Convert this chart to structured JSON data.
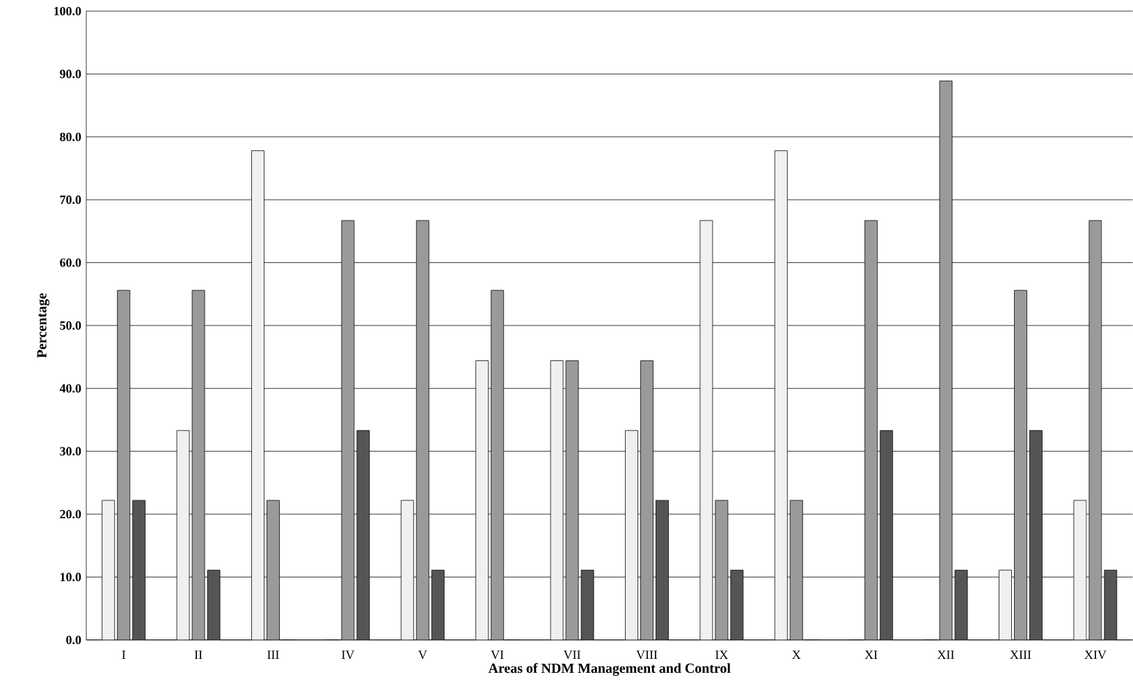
{
  "chart_data": {
    "type": "bar",
    "xlabel": "Areas of NDM Management and Control",
    "ylabel": "Percentage",
    "categories": [
      "I",
      "II",
      "III",
      "IV",
      "V",
      "VI",
      "VII",
      "VIII",
      "IX",
      "X",
      "XI",
      "XII",
      "XIII",
      "XIV"
    ],
    "series": [
      {
        "color": "#f0f0f0",
        "values": [
          22.2,
          33.3,
          77.8,
          0,
          22.2,
          44.4,
          44.4,
          33.3,
          66.7,
          77.8,
          0,
          0,
          11.1,
          22.2
        ]
      },
      {
        "color": "#9a9a9a",
        "values": [
          55.6,
          55.6,
          22.2,
          66.7,
          66.7,
          55.6,
          44.4,
          44.4,
          22.2,
          22.2,
          66.7,
          88.9,
          55.6,
          66.7
        ]
      },
      {
        "color": "#555555",
        "values": [
          22.2,
          11.1,
          0,
          33.3,
          11.1,
          0,
          11.1,
          22.2,
          11.1,
          0,
          33.3,
          11.1,
          33.3,
          11.1
        ]
      }
    ],
    "ylim": [
      0,
      100
    ],
    "yticks": [
      {
        "value": 0,
        "label": "0.0"
      },
      {
        "value": 10,
        "label": "10.0"
      },
      {
        "value": 20,
        "label": "20.0"
      },
      {
        "value": 30,
        "label": "30.0"
      },
      {
        "value": 40,
        "label": "40.0"
      },
      {
        "value": 50,
        "label": "50.0"
      },
      {
        "value": 60,
        "label": "60.0"
      },
      {
        "value": 70,
        "label": "70.0"
      },
      {
        "value": 80,
        "label": "80.0"
      },
      {
        "value": 90,
        "label": "90.0"
      },
      {
        "value": 100,
        "label": "100.0"
      }
    ],
    "grid": "y",
    "legend": false
  }
}
